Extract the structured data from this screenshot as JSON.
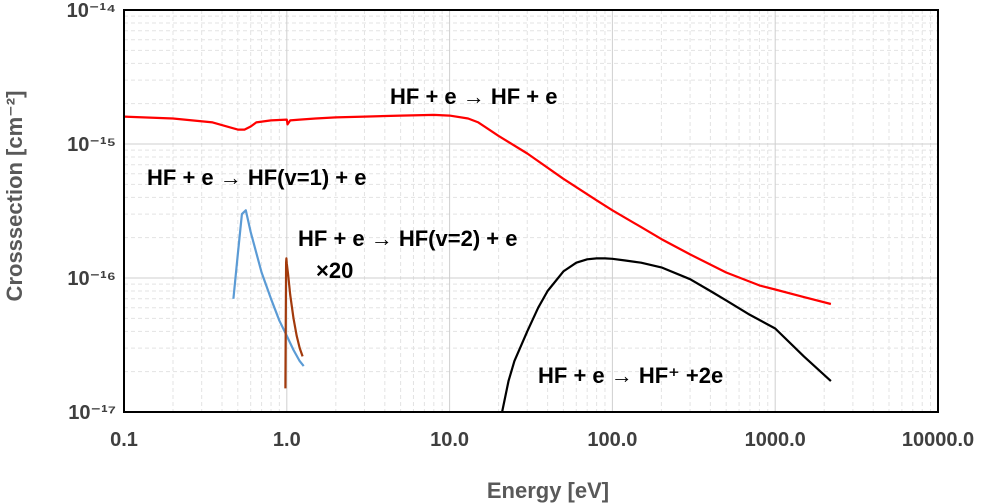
{
  "chart_data": {
    "type": "line",
    "xlabel": "Energy [eV]",
    "ylabel": "Crosssection [cm⁻²]",
    "x_scale": "log",
    "y_scale": "log",
    "xlim": [
      0.1,
      10000
    ],
    "ylim": [
      1e-17,
      1e-14
    ],
    "grid": true,
    "x_ticks": [
      {
        "value": 0.1,
        "label": "0.1"
      },
      {
        "value": 1,
        "label": "1.0"
      },
      {
        "value": 10,
        "label": "10.0"
      },
      {
        "value": 100,
        "label": "100.0"
      },
      {
        "value": 1000,
        "label": "1000.0"
      },
      {
        "value": 10000,
        "label": "10000.0"
      }
    ],
    "y_ticks": [
      {
        "value": 1e-14,
        "label": "10⁻¹⁴"
      },
      {
        "value": 1e-15,
        "label": "10⁻¹⁵"
      },
      {
        "value": 1e-16,
        "label": "10⁻¹⁶"
      },
      {
        "value": 1e-17,
        "label": "10⁻¹⁷"
      }
    ],
    "series": [
      {
        "color": "#ff0000",
        "x": [
          0.1,
          0.2,
          0.35,
          0.5,
          0.55,
          0.6,
          0.65,
          0.8,
          1.0,
          1.01,
          1.05,
          1.2,
          1.5,
          2,
          3,
          5,
          8,
          10,
          13,
          15,
          20,
          30,
          50,
          80,
          100,
          150,
          200,
          300,
          500,
          800,
          1000,
          1500,
          2200
        ],
        "y": [
          1.6e-15,
          1.55e-15,
          1.45e-15,
          1.28e-15,
          1.28e-15,
          1.35e-15,
          1.45e-15,
          1.5e-15,
          1.52e-15,
          1.4e-15,
          1.5e-15,
          1.52e-15,
          1.55e-15,
          1.58e-15,
          1.6e-15,
          1.63e-15,
          1.65e-15,
          1.63e-15,
          1.55e-15,
          1.45e-15,
          1.15e-15,
          8.5e-16,
          5.5e-16,
          3.8e-16,
          3.2e-16,
          2.4e-16,
          1.95e-16,
          1.5e-16,
          1.1e-16,
          8.8e-17,
          8.2e-17,
          7.2e-17,
          6.4e-17
        ]
      },
      {
        "color": "#5b9bd5",
        "x": [
          0.47,
          0.5,
          0.53,
          0.56,
          0.6,
          0.7,
          0.8,
          0.9,
          1.0,
          1.1,
          1.2,
          1.27
        ],
        "y": [
          7e-17,
          1.5e-16,
          3e-16,
          3.2e-16,
          2.2e-16,
          1.1e-16,
          7e-17,
          4.8e-17,
          3.7e-17,
          2.9e-17,
          2.4e-17,
          2.2e-17
        ]
      },
      {
        "color": "#a23a0c",
        "x": [
          0.98,
          0.985,
          0.99,
          0.995,
          1.0,
          1.02,
          1.05,
          1.1,
          1.15,
          1.2,
          1.25
        ],
        "y": [
          1.5e-17,
          4e-17,
          1.3e-16,
          1.4e-16,
          1.28e-16,
          1.05e-16,
          7.5e-17,
          5e-17,
          3.7e-17,
          3e-17,
          2.6e-17
        ]
      },
      {
        "color": "#000000",
        "x": [
          21,
          23,
          25,
          30,
          35,
          40,
          50,
          60,
          70,
          80,
          90,
          100,
          120,
          150,
          200,
          300,
          400,
          500,
          700,
          1000,
          1500,
          2200
        ],
        "y": [
          1e-17,
          1.7e-17,
          2.4e-17,
          4e-17,
          6e-17,
          8e-17,
          1.12e-16,
          1.3e-16,
          1.38e-16,
          1.4e-16,
          1.4e-16,
          1.39e-16,
          1.35e-16,
          1.3e-16,
          1.2e-16,
          9.8e-17,
          8e-17,
          6.8e-17,
          5.3e-17,
          4.2e-17,
          2.6e-17,
          1.7e-17
        ]
      }
    ],
    "annotations": [
      {
        "name": "elastic",
        "text": "HF + e → HF + e"
      },
      {
        "name": "vib1",
        "text": "HF + e → HF(v=1) + e"
      },
      {
        "name": "vib2",
        "text": "HF + e → HF(v=2) + e"
      },
      {
        "name": "vib2-factor",
        "text": "×20"
      },
      {
        "name": "ionization",
        "text": "HF + e → HF⁺ +2e"
      }
    ]
  }
}
